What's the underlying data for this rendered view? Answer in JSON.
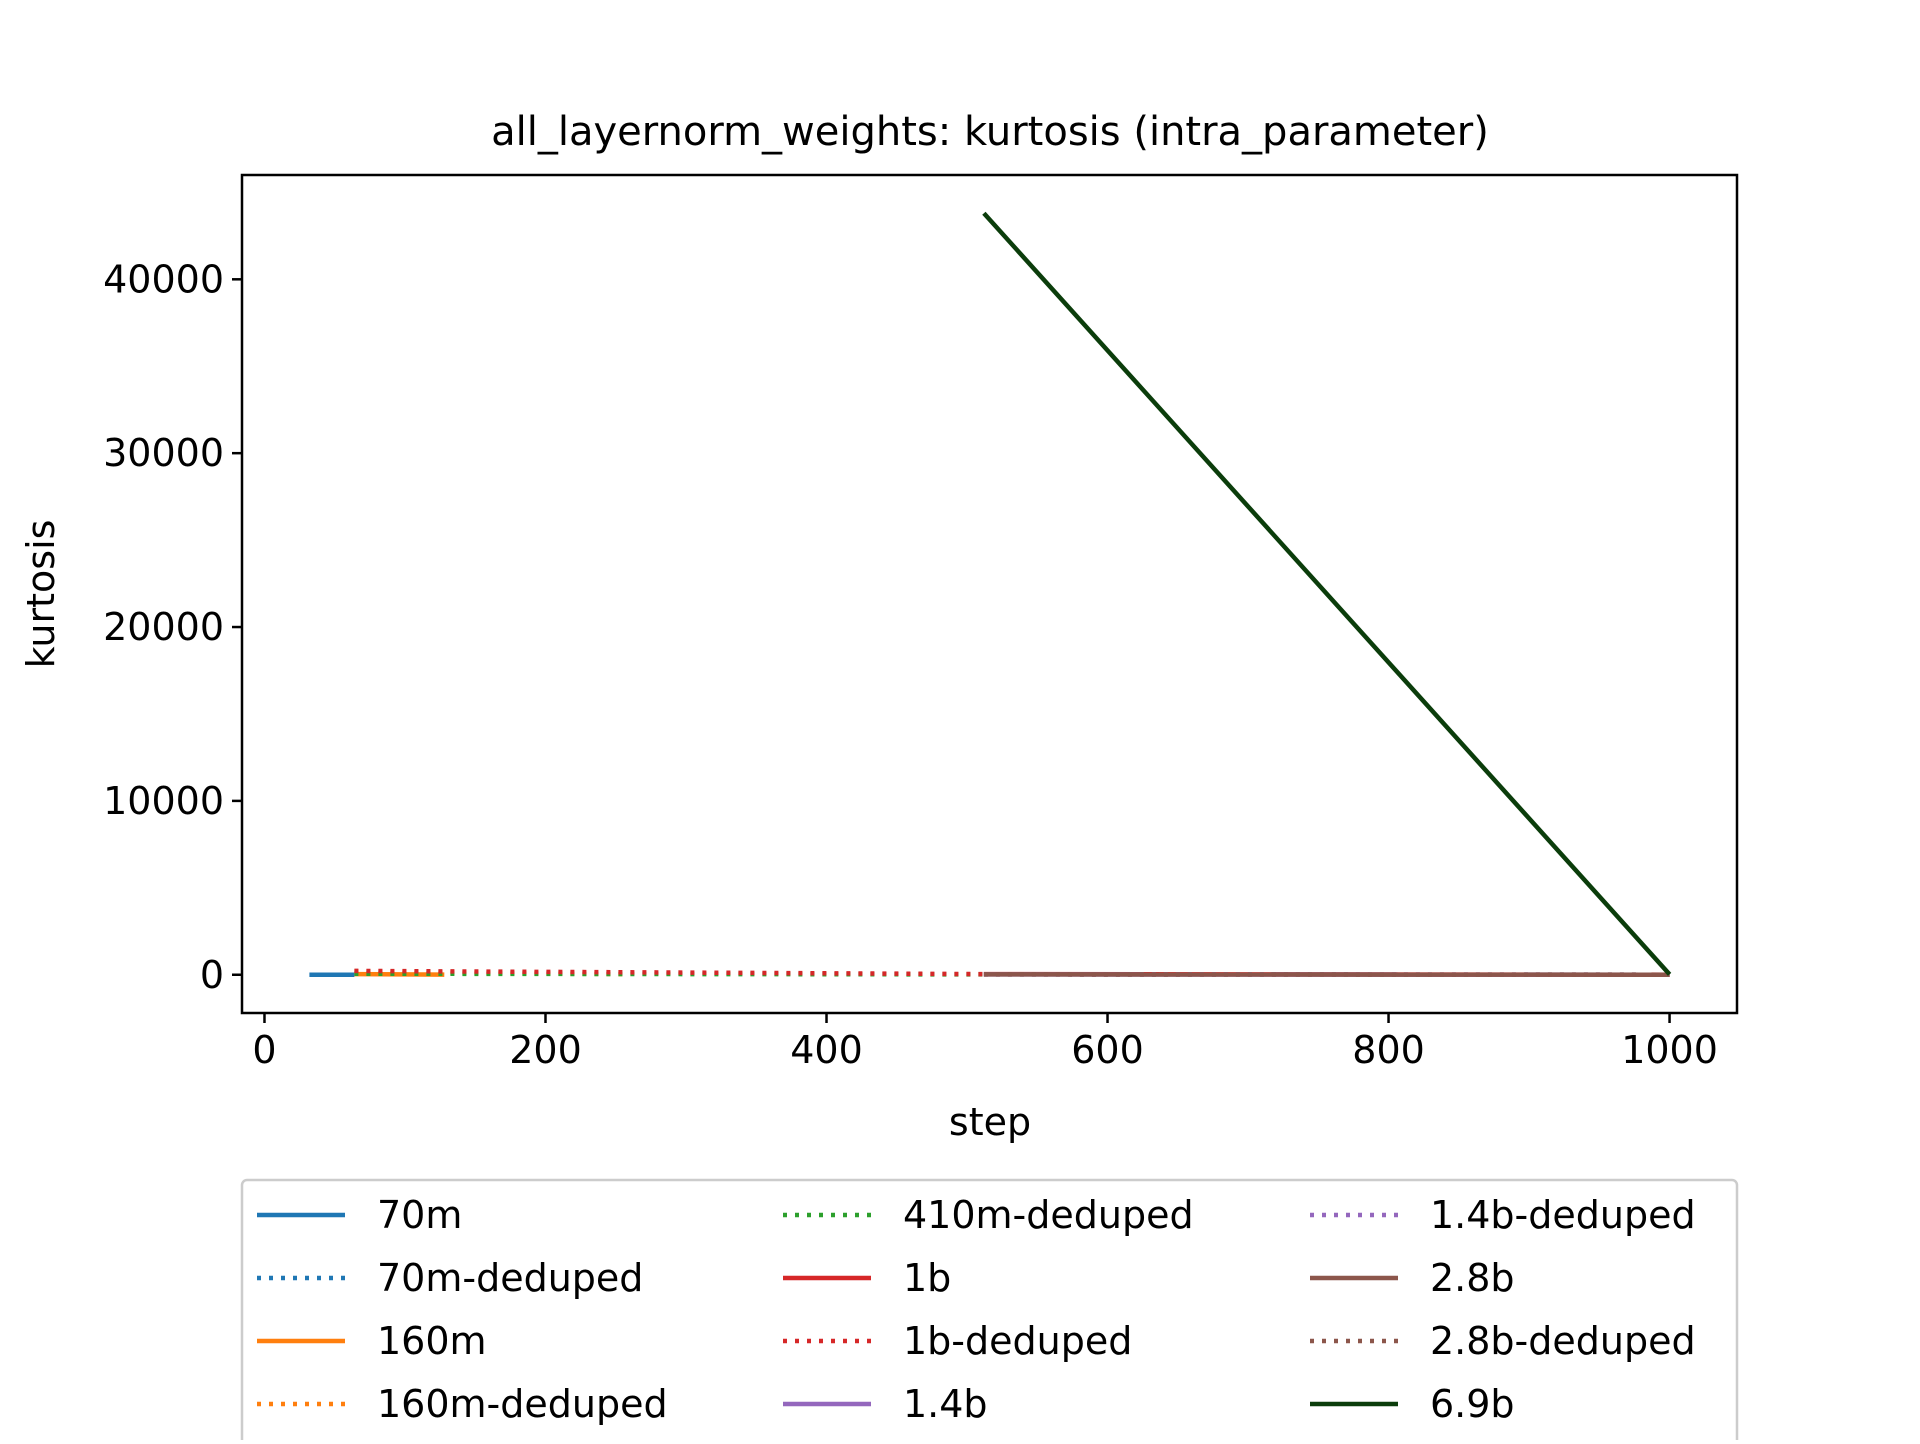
{
  "chart_data": {
    "type": "line",
    "title": "all_layernorm_weights: kurtosis (intra_parameter)",
    "xlabel": "step",
    "ylabel": "kurtosis",
    "xlim": [
      -16,
      1048
    ],
    "ylim": [
      -2200,
      46000
    ],
    "xticks": [
      0,
      200,
      400,
      600,
      800,
      1000
    ],
    "yticks": [
      0,
      10000,
      20000,
      30000,
      40000
    ],
    "xtick_labels": [
      "0",
      "200",
      "400",
      "600",
      "800",
      "1000"
    ],
    "ytick_labels": [
      "0",
      "10000",
      "20000",
      "30000",
      "40000"
    ],
    "grid": false,
    "legend_position": "bottom",
    "series": [
      {
        "name": "70m",
        "color": "#1f77b4",
        "dash": "solid",
        "x": [
          32,
          64
        ],
        "y": [
          5,
          5
        ]
      },
      {
        "name": "70m-deduped",
        "color": "#1f77b4",
        "dash": "dotted",
        "x": [
          64,
          128
        ],
        "y": [
          120,
          20
        ]
      },
      {
        "name": "160m",
        "color": "#ff7f0e",
        "dash": "solid",
        "x": [
          64,
          128
        ],
        "y": [
          40,
          10
        ]
      },
      {
        "name": "160m-deduped",
        "color": "#ff7f0e",
        "dash": "dotted",
        "x": [
          64,
          256
        ],
        "y": [
          200,
          30
        ]
      },
      {
        "name": "410m-deduped",
        "color": "#2ca02c",
        "dash": "dotted",
        "x": [
          64,
          512
        ],
        "y": [
          60,
          20
        ]
      },
      {
        "name": "1b",
        "color": "#d62728",
        "dash": "solid",
        "x": [
          512,
          1000
        ],
        "y": [
          40,
          5
        ]
      },
      {
        "name": "1b-deduped",
        "color": "#d62728",
        "dash": "dotted",
        "x": [
          64,
          512
        ],
        "y": [
          220,
          40
        ]
      },
      {
        "name": "1.4b",
        "color": "#9467bd",
        "dash": "solid",
        "x": [
          512,
          1000
        ],
        "y": [
          20,
          5
        ]
      },
      {
        "name": "1.4b-deduped",
        "color": "#9467bd",
        "dash": "dotted",
        "x": [
          512,
          1000
        ],
        "y": [
          20,
          5
        ]
      },
      {
        "name": "2.8b",
        "color": "#8c564b",
        "dash": "solid",
        "x": [
          512,
          1000
        ],
        "y": [
          20,
          5
        ]
      },
      {
        "name": "2.8b-deduped",
        "color": "#8c564b",
        "dash": "dotted",
        "x": [
          512,
          1000
        ],
        "y": [
          20,
          5
        ]
      },
      {
        "name": "6.9b",
        "color": "#0b3d0b",
        "dash": "solid",
        "x": [
          512,
          1000
        ],
        "y": [
          43800,
          20
        ]
      }
    ]
  }
}
